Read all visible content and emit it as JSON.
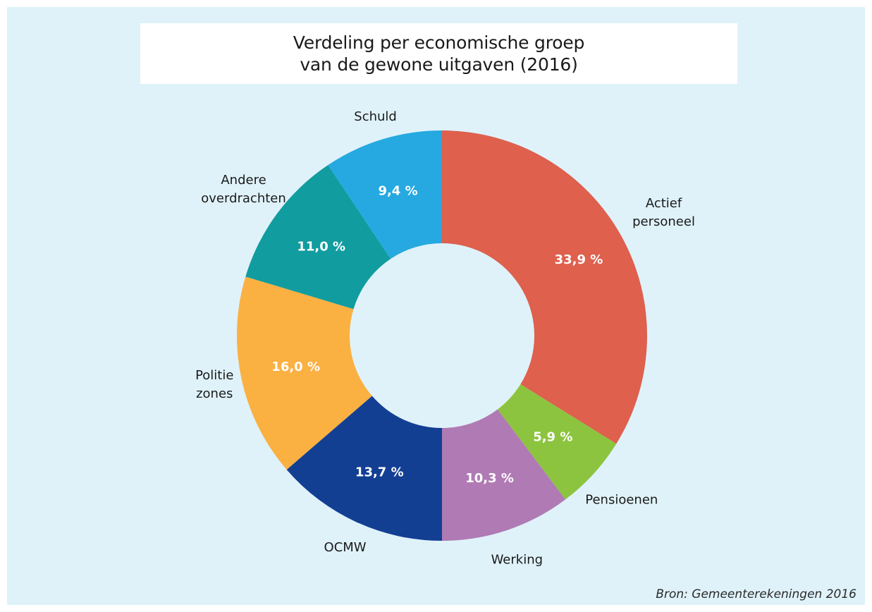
{
  "chart_data": {
    "type": "pie",
    "title_lines": [
      "Verdeling per economische groep",
      "van de gewone uitgaven (2016)"
    ],
    "source": "Bron: Gemeenterekeningen 2016",
    "slices": [
      {
        "name": "Actief personeel",
        "label_lines": [
          "Actief",
          "personeel"
        ],
        "value": 33.9,
        "display": "33,9 %",
        "color": "#de604d"
      },
      {
        "name": "Pensioenen",
        "label_lines": [
          "Pensioenen"
        ],
        "value": 5.9,
        "display": "5,9 %",
        "color": "#8cc43f"
      },
      {
        "name": "Werking",
        "label_lines": [
          "Werking"
        ],
        "value": 10.3,
        "display": "10,3 %",
        "color": "#b07ab4"
      },
      {
        "name": "OCMW",
        "label_lines": [
          "OCMW"
        ],
        "value": 13.7,
        "display": "13,7 %",
        "color": "#133f93"
      },
      {
        "name": "Politie zones",
        "label_lines": [
          "Politie",
          "zones"
        ],
        "value": 16.0,
        "display": "16,0 %",
        "color": "#fbb042"
      },
      {
        "name": "Andere overdrachten",
        "label_lines": [
          "Andere",
          "overdrachten"
        ],
        "value": 11.0,
        "display": "11,0 %",
        "color": "#119c9f"
      },
      {
        "name": "Schuld",
        "label_lines": [
          "Schuld"
        ],
        "value": 9.4,
        "display": "9,4 %",
        "color": "#25a9e0"
      }
    ]
  }
}
